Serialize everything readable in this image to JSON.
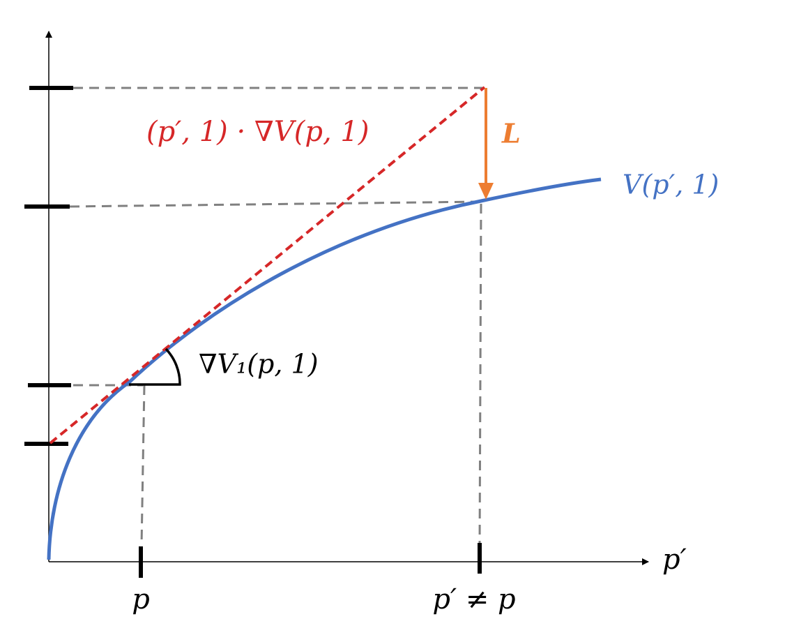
{
  "labels": {
    "tangent": "(p′, 1) · ∇V(p, 1)",
    "loss": "L",
    "curve": "V(p′, 1)",
    "gradient": "∇V₁(p, 1)",
    "x_p": "p",
    "x_p_prime": "p′ ≠ p",
    "x_axis": "p′"
  }
}
